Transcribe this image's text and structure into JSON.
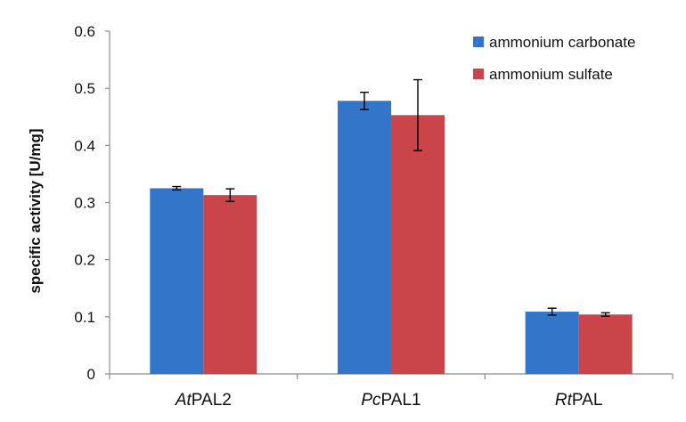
{
  "chart_data": {
    "type": "bar",
    "ylabel": "specific activity [U/mg]",
    "xlabel": "",
    "ylim": [
      0,
      0.6
    ],
    "yticks": [
      "0",
      "0.1",
      "0.2",
      "0.3",
      "0.4",
      "0.5",
      "0.6"
    ],
    "categories": [
      {
        "italic": "At",
        "rest": "PAL2"
      },
      {
        "italic": "Pc",
        "rest": "PAL1"
      },
      {
        "italic": "Rt",
        "rest": "PAL"
      }
    ],
    "series": [
      {
        "name": "ammonium carbonate",
        "color": "#3275c9",
        "values": [
          0.325,
          0.478,
          0.109
        ],
        "errors": [
          0.003,
          0.015,
          0.006
        ]
      },
      {
        "name": "ammonium sulfate",
        "color": "#c9454a",
        "values": [
          0.313,
          0.453,
          0.104
        ],
        "errors": [
          0.011,
          0.062,
          0.003
        ]
      }
    ],
    "grid": false,
    "legend_position": "top-right"
  }
}
